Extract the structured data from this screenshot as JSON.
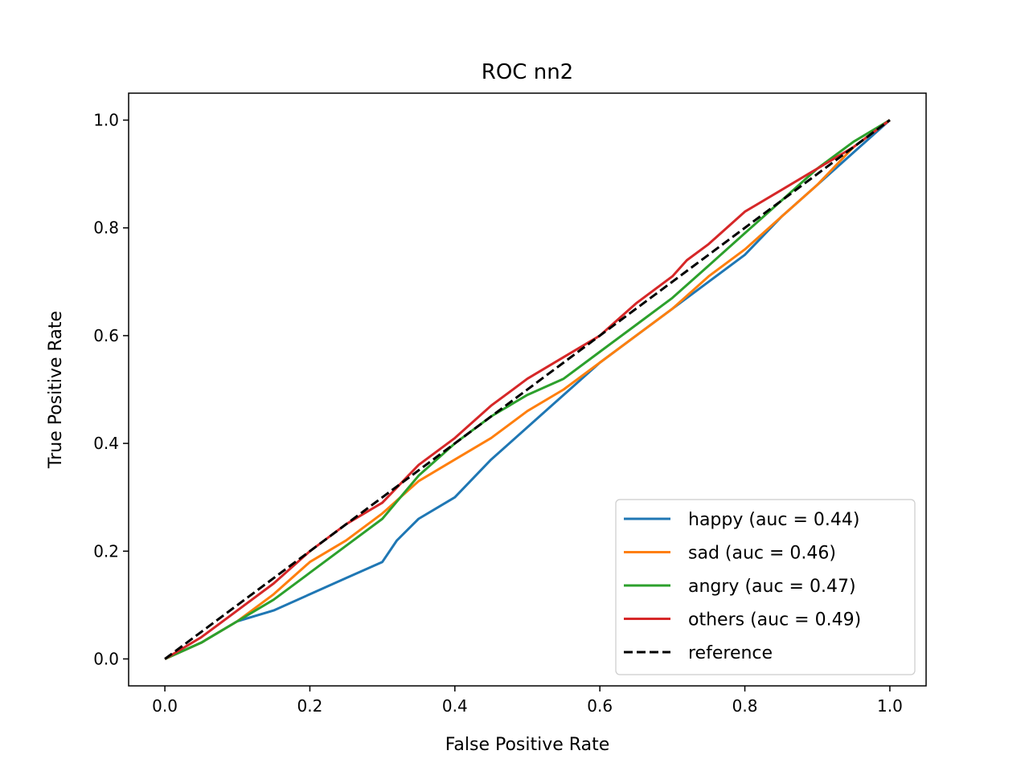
{
  "chart_data": {
    "type": "line",
    "title": "ROC nn2",
    "xlabel": "False Positive Rate",
    "ylabel": "True Positive Rate",
    "xlim": [
      -0.05,
      1.05
    ],
    "ylim": [
      -0.05,
      1.05
    ],
    "xticks": [
      0.0,
      0.2,
      0.4,
      0.6,
      0.8,
      1.0
    ],
    "yticks": [
      0.0,
      0.2,
      0.4,
      0.6,
      0.8,
      1.0
    ],
    "xtick_labels": [
      "0.0",
      "0.2",
      "0.4",
      "0.6",
      "0.8",
      "1.0"
    ],
    "ytick_labels": [
      "0.0",
      "0.2",
      "0.4",
      "0.6",
      "0.8",
      "1.0"
    ],
    "grid": false,
    "legend_position": "lower right",
    "series": [
      {
        "name": "happy (auc = 0.44)",
        "color": "#1f77b4",
        "style": "solid",
        "x": [
          0.0,
          0.05,
          0.1,
          0.15,
          0.2,
          0.25,
          0.3,
          0.32,
          0.35,
          0.4,
          0.45,
          0.5,
          0.55,
          0.6,
          0.65,
          0.7,
          0.75,
          0.8,
          0.85,
          0.9,
          0.95,
          1.0
        ],
        "y": [
          0.0,
          0.03,
          0.07,
          0.09,
          0.12,
          0.15,
          0.18,
          0.22,
          0.26,
          0.3,
          0.37,
          0.43,
          0.49,
          0.55,
          0.6,
          0.65,
          0.7,
          0.75,
          0.82,
          0.88,
          0.94,
          1.0
        ]
      },
      {
        "name": "sad (auc = 0.46)",
        "color": "#ff7f0e",
        "style": "solid",
        "x": [
          0.0,
          0.05,
          0.1,
          0.15,
          0.2,
          0.25,
          0.3,
          0.35,
          0.4,
          0.45,
          0.5,
          0.55,
          0.6,
          0.65,
          0.7,
          0.75,
          0.8,
          0.85,
          0.9,
          0.95,
          1.0
        ],
        "y": [
          0.0,
          0.03,
          0.07,
          0.12,
          0.18,
          0.22,
          0.27,
          0.33,
          0.37,
          0.41,
          0.46,
          0.5,
          0.55,
          0.6,
          0.65,
          0.71,
          0.76,
          0.82,
          0.88,
          0.95,
          1.0
        ]
      },
      {
        "name": "angry (auc = 0.47)",
        "color": "#2ca02c",
        "style": "solid",
        "x": [
          0.0,
          0.05,
          0.1,
          0.15,
          0.2,
          0.25,
          0.3,
          0.35,
          0.4,
          0.45,
          0.5,
          0.55,
          0.6,
          0.65,
          0.7,
          0.75,
          0.8,
          0.85,
          0.9,
          0.95,
          1.0
        ],
        "y": [
          0.0,
          0.03,
          0.07,
          0.11,
          0.16,
          0.21,
          0.26,
          0.34,
          0.4,
          0.45,
          0.49,
          0.52,
          0.57,
          0.62,
          0.67,
          0.73,
          0.79,
          0.85,
          0.91,
          0.96,
          1.0
        ]
      },
      {
        "name": "others (auc = 0.49)",
        "color": "#d62728",
        "style": "solid",
        "x": [
          0.0,
          0.05,
          0.1,
          0.15,
          0.2,
          0.25,
          0.3,
          0.35,
          0.4,
          0.45,
          0.5,
          0.55,
          0.6,
          0.65,
          0.7,
          0.72,
          0.75,
          0.8,
          0.85,
          0.9,
          0.95,
          1.0
        ],
        "y": [
          0.0,
          0.04,
          0.09,
          0.14,
          0.2,
          0.25,
          0.29,
          0.36,
          0.41,
          0.47,
          0.52,
          0.56,
          0.6,
          0.66,
          0.71,
          0.74,
          0.77,
          0.83,
          0.87,
          0.91,
          0.95,
          1.0
        ]
      },
      {
        "name": "reference",
        "color": "#000000",
        "style": "dashed",
        "x": [
          0.0,
          1.0
        ],
        "y": [
          0.0,
          1.0
        ]
      }
    ]
  }
}
